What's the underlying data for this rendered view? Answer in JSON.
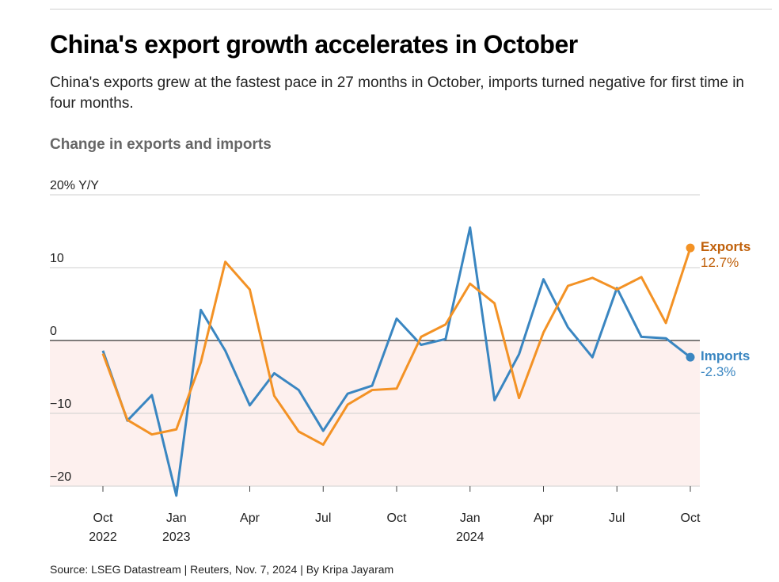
{
  "header": {
    "title": "China's export growth accelerates in October",
    "subtitle": "China's exports grew at the fastest pace in 27 months in October, imports turned negative for first time in four months.",
    "chart_heading": "Change in exports and imports"
  },
  "source": "Source: LSEG Datastream | Reuters, Nov. 7, 2024 | By Kripa Jayaram",
  "chart_data": {
    "type": "line",
    "title": "Change in exports and imports",
    "ylabel": "% Y/Y",
    "ylim": [
      -20,
      20
    ],
    "y_ticks": [
      {
        "value": 20,
        "label": "20% Y/Y"
      },
      {
        "value": 10,
        "label": "10"
      },
      {
        "value": 0,
        "label": "0"
      },
      {
        "value": -10,
        "label": "−10"
      },
      {
        "value": -20,
        "label": "−20"
      }
    ],
    "x": [
      "Oct 2022",
      "Nov 2022",
      "Dec 2022",
      "Jan 2023",
      "Feb 2023",
      "Mar 2023",
      "Apr 2023",
      "May 2023",
      "Jun 2023",
      "Jul 2023",
      "Aug 2023",
      "Sep 2023",
      "Oct 2023",
      "Nov 2023",
      "Dec 2023",
      "Jan 2024",
      "Feb 2024",
      "Mar 2024",
      "Apr 2024",
      "May 2024",
      "Jun 2024",
      "Jul 2024",
      "Aug 2024",
      "Sep 2024",
      "Oct 2024"
    ],
    "x_ticks": [
      {
        "index": 0,
        "line1": "Oct",
        "line2": "2022"
      },
      {
        "index": 3,
        "line1": "Jan",
        "line2": "2023"
      },
      {
        "index": 6,
        "line1": "Apr",
        "line2": ""
      },
      {
        "index": 9,
        "line1": "Jul",
        "line2": ""
      },
      {
        "index": 12,
        "line1": "Oct",
        "line2": ""
      },
      {
        "index": 15,
        "line1": "Jan",
        "line2": "2024"
      },
      {
        "index": 18,
        "line1": "Apr",
        "line2": ""
      },
      {
        "index": 21,
        "line1": "Jul",
        "line2": ""
      },
      {
        "index": 24,
        "line1": "Oct",
        "line2": ""
      }
    ],
    "series": [
      {
        "name": "Exports",
        "end_label": "12.7%",
        "color": "#f39225",
        "label_color": "#c0600a",
        "values": [
          -1.8,
          -10.9,
          -12.9,
          -12.2,
          -3.0,
          10.8,
          7.0,
          -7.6,
          -12.5,
          -14.3,
          -8.8,
          -6.8,
          -6.6,
          0.5,
          2.2,
          7.8,
          5.1,
          -7.9,
          1.1,
          7.5,
          8.6,
          7.0,
          8.7,
          2.4,
          12.7
        ]
      },
      {
        "name": "Imports",
        "end_label": "-2.3%",
        "color": "#3a86c1",
        "label_color": "#3a86c1",
        "values": [
          -1.4,
          -11.0,
          -7.5,
          -21.3,
          4.2,
          -1.4,
          -8.9,
          -4.5,
          -6.8,
          -12.4,
          -7.3,
          -6.2,
          3.0,
          -0.6,
          0.2,
          15.5,
          -8.2,
          -1.9,
          8.4,
          1.8,
          -2.3,
          7.2,
          0.5,
          0.3,
          -2.3
        ]
      }
    ]
  }
}
